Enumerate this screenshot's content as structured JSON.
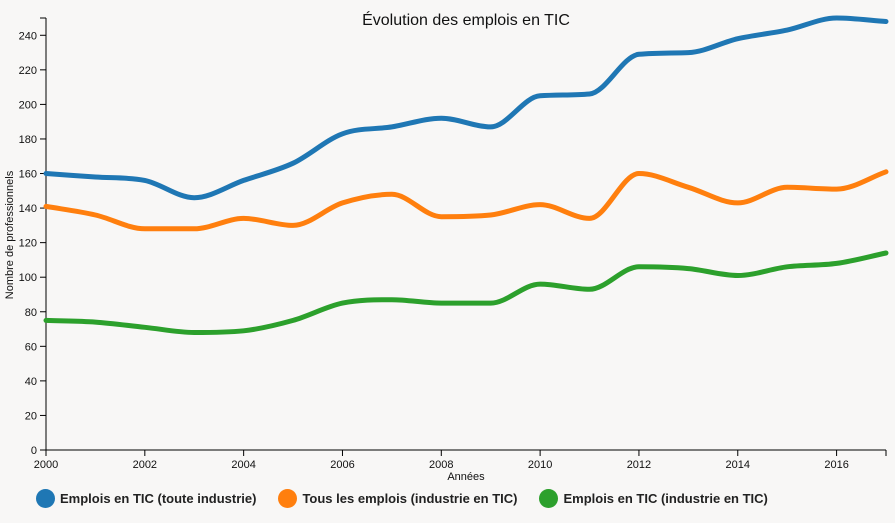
{
  "chart_data": {
    "type": "line",
    "title": "Évolution des emplois en TIC",
    "xlabel": "Années",
    "ylabel": "Nombre de professionnels",
    "xlim": [
      2000,
      2017
    ],
    "ylim": [
      0,
      250
    ],
    "x_ticks": [
      2000,
      2002,
      2004,
      2006,
      2008,
      2010,
      2012,
      2014,
      2016
    ],
    "y_ticks": [
      0,
      20,
      40,
      60,
      80,
      100,
      120,
      140,
      160,
      180,
      200,
      220,
      240
    ],
    "grid": false,
    "legend_position": "bottom",
    "x": [
      2000,
      2001,
      2002,
      2003,
      2004,
      2005,
      2006,
      2007,
      2008,
      2009,
      2010,
      2011,
      2012,
      2013,
      2014,
      2015,
      2016,
      2017
    ],
    "series": [
      {
        "name": "Emplois en TIC (toute industrie)",
        "color": "#1f77b4",
        "values": [
          160,
          158,
          156,
          146,
          156,
          166,
          183,
          187,
          192,
          187,
          205,
          206,
          229,
          230,
          238,
          243,
          250,
          248
        ]
      },
      {
        "name": "Tous les emplois (industrie en TIC)",
        "color": "#ff7f0e",
        "values": [
          141,
          136,
          128,
          128,
          134,
          130,
          143,
          148,
          135,
          136,
          142,
          134,
          160,
          152,
          143,
          152,
          151,
          161
        ]
      },
      {
        "name": "Emplois en TIC (industrie en TIC)",
        "color": "#2ca02c",
        "values": [
          75,
          74,
          71,
          68,
          69,
          75,
          85,
          87,
          85,
          85,
          96,
          93,
          106,
          105,
          101,
          106,
          108,
          114
        ]
      }
    ]
  }
}
